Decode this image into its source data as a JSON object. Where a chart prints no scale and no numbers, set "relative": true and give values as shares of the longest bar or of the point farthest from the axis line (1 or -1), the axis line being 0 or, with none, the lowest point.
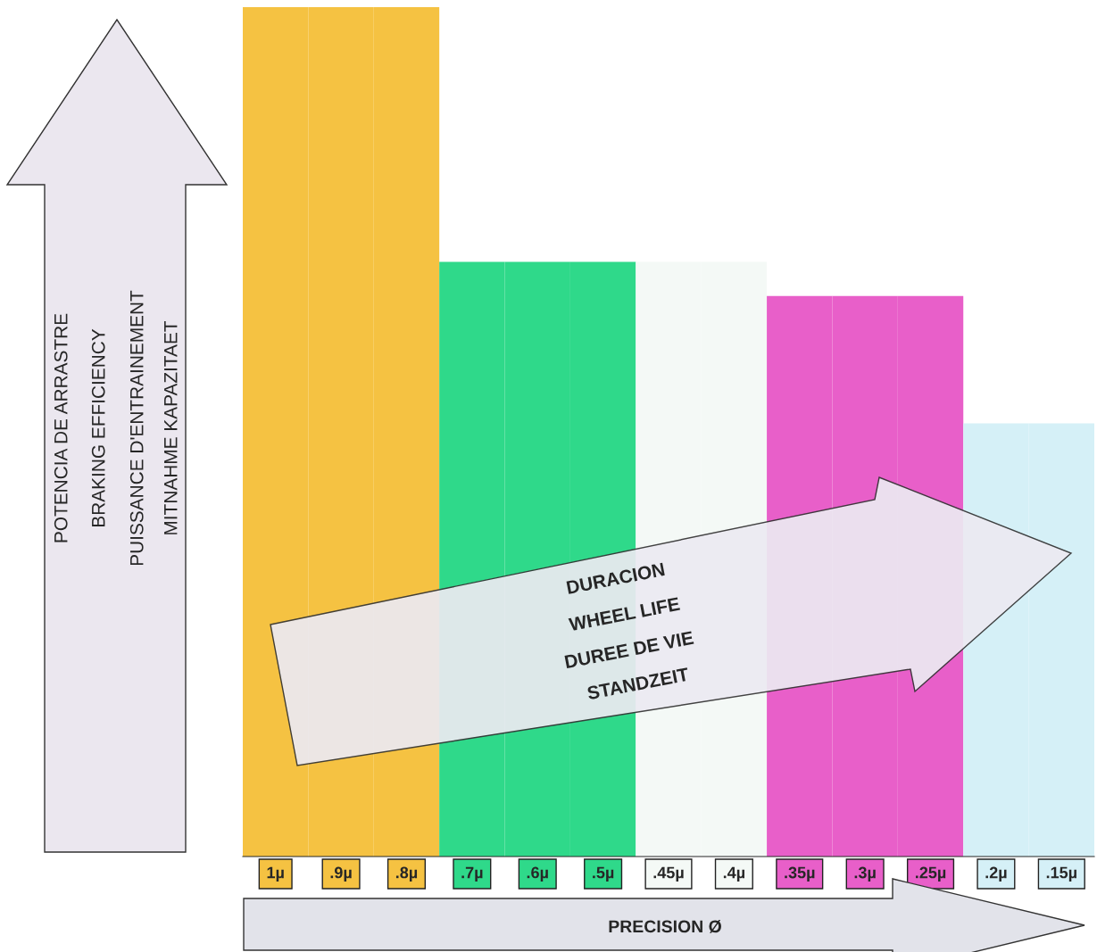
{
  "chart_data": {
    "type": "bar",
    "relative": true,
    "xlabel": "PRECISION Ø",
    "categories": [
      "1µ",
      ".9µ",
      ".8µ",
      ".7µ",
      ".6µ",
      ".5µ",
      ".45µ",
      ".4µ",
      ".35µ",
      ".3µ",
      ".25µ",
      ".2µ",
      ".15µ"
    ],
    "values": [
      1,
      1,
      1,
      0.7,
      0.7,
      0.7,
      0.7,
      0.7,
      0.66,
      0.66,
      0.66,
      0.51,
      0.51
    ],
    "colors": [
      "#f5c242",
      "#f5c242",
      "#f5c242",
      "#2fd98a",
      "#2fd98a",
      "#2fd98a",
      "#f4f9f6",
      "#f4f9f6",
      "#e85fc9",
      "#e85fc9",
      "#e85fc9",
      "#d5f0f7",
      "#d5f0f7"
    ],
    "annotations": [
      "POTENCIA DE ARRASTRE",
      "BRAKING EFFICIENCY",
      "PUISSANCE D'ENTRAINEMENT",
      "MITNAHME KAPAZITAET",
      "DURACION",
      "WHEEL LIFE",
      "DUREE DE VIE",
      "STANDZEIT"
    ],
    "grid": false,
    "legend": false
  }
}
